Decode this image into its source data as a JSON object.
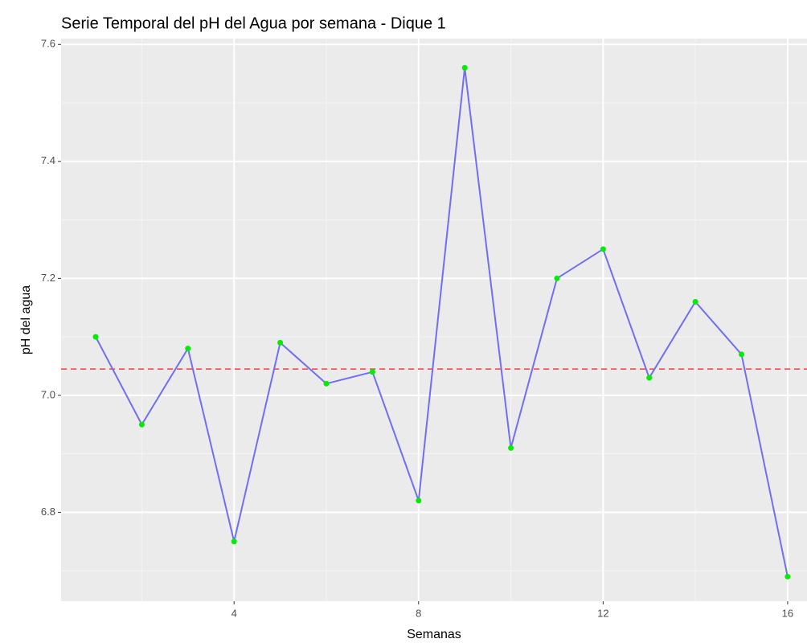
{
  "chart_data": {
    "type": "line",
    "title": "Serie Temporal del pH del Agua por semana - Dique 1",
    "x_label": "Semanas",
    "y_label": "pH del agua",
    "x": [
      1,
      2,
      3,
      4,
      5,
      6,
      7,
      8,
      9,
      10,
      11,
      12,
      13,
      14,
      15,
      16
    ],
    "series": [
      {
        "name": "pH",
        "color": "#6f6ff5",
        "marker_color": "#00ee00",
        "values": [
          7.1,
          6.95,
          7.08,
          6.75,
          7.09,
          7.02,
          7.04,
          6.82,
          7.56,
          6.91,
          7.2,
          7.25,
          7.03,
          7.16,
          7.07,
          6.69
        ]
      }
    ],
    "hline": {
      "value": 7.045,
      "color": "#f04040",
      "style": "dashed"
    },
    "xlim": [
      0.25,
      16.42
    ],
    "ylim": [
      6.648,
      7.61
    ],
    "xticks": [
      4,
      8,
      12,
      16
    ],
    "yticks": [
      6.8,
      {
        "value": 7.0,
        "label": "7.0"
      },
      7.2,
      7.4,
      7.6
    ],
    "x_minor_ticks": [
      2,
      6,
      10,
      14
    ],
    "y_minor_ticks": [
      6.7,
      6.9,
      7.1,
      7.3,
      7.5
    ],
    "grid": true
  }
}
